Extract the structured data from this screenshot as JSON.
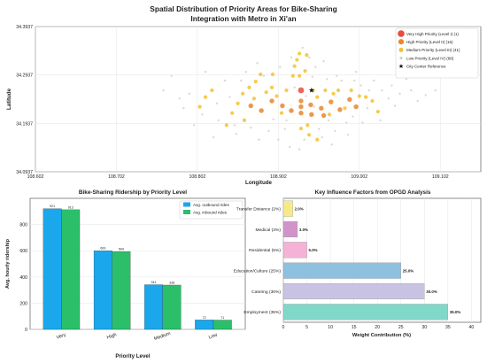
{
  "figure": {
    "main_title_line1": "Spatial Distribution of Priority Areas for Bike-Sharing",
    "main_title_line2": "Integration with Metro in Xi'an"
  },
  "chart_data": [
    {
      "type": "scatter",
      "title": "",
      "xlabel": "Longitude",
      "ylabel": "Latitude",
      "xlim": [
        108.602,
        109.152
      ],
      "ylim": [
        34.0937,
        34.3937
      ],
      "xticks": [
        108.602,
        108.702,
        108.802,
        108.902,
        109.002,
        109.102
      ],
      "xtick_labels": [
        "108.602",
        "108.702",
        "108.802",
        "108.902",
        "109.002",
        "109.102"
      ],
      "yticks": [
        34.0937,
        34.1937,
        34.2937,
        34.3937
      ],
      "ytick_labels": [
        "34.0937",
        "34.1937",
        "34.2937",
        "34.3937"
      ],
      "grid": true,
      "legend_position": "top-right",
      "series": [
        {
          "name": "Very High Priority (Level I) (1)",
          "color": "#e74c3c",
          "size": 6,
          "points": [
            [
              108.93,
              34.262
            ]
          ]
        },
        {
          "name": "High Priority (Level II) (16)",
          "color": "#e8862e",
          "size": 4.6,
          "points": [
            [
              108.868,
              34.23
            ],
            [
              108.881,
              34.22
            ],
            [
              108.894,
              34.24
            ],
            [
              108.907,
              34.23
            ],
            [
              108.918,
              34.22
            ],
            [
              108.93,
              34.24
            ],
            [
              108.93,
              34.228
            ],
            [
              108.93,
              34.215
            ],
            [
              108.942,
              34.232
            ],
            [
              108.955,
              34.225
            ],
            [
              108.967,
              34.238
            ],
            [
              108.978,
              34.222
            ],
            [
              108.99,
              34.243
            ],
            [
              108.998,
              34.228
            ],
            [
              108.943,
              34.212
            ],
            [
              108.958,
              34.21
            ]
          ]
        },
        {
          "name": "Medium Priority (Level III) (41)",
          "color": "#f3c12e",
          "size": 3.4,
          "points": [
            [
              108.838,
              34.19
            ],
            [
              108.845,
              34.215
            ],
            [
              108.852,
              34.235
            ],
            [
              108.858,
              34.255
            ],
            [
              108.866,
              34.268
            ],
            [
              108.874,
              34.28
            ],
            [
              108.88,
              34.295
            ],
            [
              108.887,
              34.258
            ],
            [
              108.894,
              34.268
            ],
            [
              108.9,
              34.25
            ],
            [
              108.906,
              34.215
            ],
            [
              108.912,
              34.262
            ],
            [
              108.92,
              34.292
            ],
            [
              108.922,
              34.312
            ],
            [
              108.925,
              34.325
            ],
            [
              108.928,
              34.338
            ],
            [
              108.935,
              34.302
            ],
            [
              108.937,
              34.335
            ],
            [
              108.938,
              34.19
            ],
            [
              108.945,
              34.262
            ],
            [
              108.95,
              34.248
            ],
            [
              108.96,
              34.262
            ],
            [
              108.965,
              34.212
            ],
            [
              108.97,
              34.255
            ],
            [
              108.976,
              34.262
            ],
            [
              108.984,
              34.225
            ],
            [
              108.992,
              34.262
            ],
            [
              109.002,
              34.25
            ],
            [
              109.01,
              34.248
            ],
            [
              109.018,
              34.24
            ],
            [
              109.025,
              34.218
            ],
            [
              108.82,
              34.262
            ],
            [
              108.812,
              34.248
            ],
            [
              108.805,
              34.228
            ],
            [
              108.94,
              34.17
            ],
            [
              108.95,
              34.16
            ],
            [
              108.93,
              34.183
            ],
            [
              108.928,
              34.292
            ],
            [
              108.895,
              34.295
            ],
            [
              108.86,
              34.2
            ],
            [
              108.872,
              34.245
            ]
          ]
        },
        {
          "name": "Low Priority (Level IV) (68)",
          "color": "#cfcfcf",
          "size": 1.6,
          "points": [
            [
              108.76,
              34.262
            ],
            [
              108.785,
              34.225
            ],
            [
              108.798,
              34.19
            ],
            [
              108.812,
              34.3
            ],
            [
              108.822,
              34.165
            ],
            [
              108.836,
              34.282
            ],
            [
              108.85,
              34.172
            ],
            [
              108.862,
              34.3
            ],
            [
              108.878,
              34.16
            ],
            [
              108.89,
              34.178
            ],
            [
              108.902,
              34.16
            ],
            [
              108.904,
              34.31
            ],
            [
              108.916,
              34.145
            ],
            [
              108.928,
              34.14
            ],
            [
              108.932,
              34.35
            ],
            [
              108.94,
              34.33
            ],
            [
              108.948,
              34.31
            ],
            [
              108.956,
              34.165
            ],
            [
              108.962,
              34.285
            ],
            [
              108.972,
              34.178
            ],
            [
              108.98,
              34.282
            ],
            [
              108.988,
              34.17
            ],
            [
              108.996,
              34.282
            ],
            [
              109.006,
              34.195
            ],
            [
              109.014,
              34.262
            ],
            [
              109.02,
              34.282
            ],
            [
              109.03,
              34.262
            ],
            [
              109.038,
              34.245
            ],
            [
              109.046,
              34.23
            ],
            [
              109.052,
              34.255
            ],
            [
              109.066,
              34.262
            ],
            [
              109.074,
              34.24
            ],
            [
              109.084,
              34.252
            ],
            [
              109.096,
              34.262
            ],
            [
              108.77,
              34.292
            ],
            [
              108.792,
              34.255
            ],
            [
              108.808,
              34.212
            ],
            [
              108.828,
              34.2
            ],
            [
              108.842,
              34.248
            ],
            [
              108.856,
              34.282
            ],
            [
              108.868,
              34.185
            ],
            [
              108.884,
              34.292
            ],
            [
              108.896,
              34.202
            ],
            [
              108.91,
              34.182
            ],
            [
              108.918,
              34.33
            ],
            [
              108.934,
              34.16
            ],
            [
              108.944,
              34.29
            ],
            [
              108.952,
              34.182
            ],
            [
              108.964,
              34.2
            ],
            [
              108.974,
              34.292
            ],
            [
              108.986,
              34.195
            ],
            [
              108.994,
              34.208
            ],
            [
              109.004,
              34.272
            ],
            [
              109.012,
              34.225
            ],
            [
              109.028,
              34.2
            ],
            [
              109.042,
              34.272
            ],
            [
              108.78,
              34.245
            ],
            [
              108.826,
              34.235
            ],
            [
              108.848,
              34.19
            ],
            [
              108.876,
              34.318
            ],
            [
              108.958,
              34.322
            ],
            [
              108.968,
              34.15
            ],
            [
              108.998,
              34.3
            ],
            [
              109.06,
              34.285
            ],
            [
              108.912,
              34.2
            ],
            [
              108.936,
              34.25
            ],
            [
              108.946,
              34.228
            ],
            [
              108.922,
              34.268
            ]
          ]
        }
      ],
      "reference": {
        "name": "City Center Reference",
        "color": "#111111",
        "point": [
          108.943,
          34.262
        ]
      }
    },
    {
      "type": "bar",
      "title": "Bike-Sharing Ridership by Priority Level",
      "xlabel": "Priority Level",
      "ylabel": "Avg. hourly ridership",
      "categories": [
        "Very",
        "High",
        "Medium",
        "Low"
      ],
      "ylim": [
        0,
        1000
      ],
      "yticks": [
        0,
        200,
        400,
        600,
        800
      ],
      "grid": true,
      "legend_position": "top-right",
      "series": [
        {
          "name": "Avg. outbound rides",
          "color": "#1aa7ec",
          "values": [
            921,
            600,
            341,
            72
          ]
        },
        {
          "name": "Avg. inbound rides",
          "color": "#2bbf6a",
          "values": [
            913,
            594,
            338,
            71
          ]
        }
      ]
    },
    {
      "type": "bar",
      "orientation": "horizontal",
      "title": "Key Influence Factors from OPGD Analysis",
      "xlabel": "Weight Contribution (%)",
      "ylabel": "",
      "categories": [
        "Employment (35%)",
        "Catering (30%)",
        "Education/Culture (25%)",
        "Residential (5%)",
        "Medical (3%)",
        "Transfer Distance (2%)"
      ],
      "values": [
        35,
        30,
        25,
        5,
        3,
        2
      ],
      "value_labels": [
        "35.0%",
        "30.0%",
        "25.0%",
        "5.0%",
        "3.0%",
        "2.0%"
      ],
      "colors": [
        "#80d8c9",
        "#c9c3e3",
        "#8ec0e0",
        "#f5b2d6",
        "#d293cb",
        "#f6e98a"
      ],
      "xlim": [
        0,
        42
      ],
      "xticks": [
        0,
        5,
        10,
        15,
        20,
        25,
        30,
        35,
        40
      ],
      "grid": true
    }
  ]
}
